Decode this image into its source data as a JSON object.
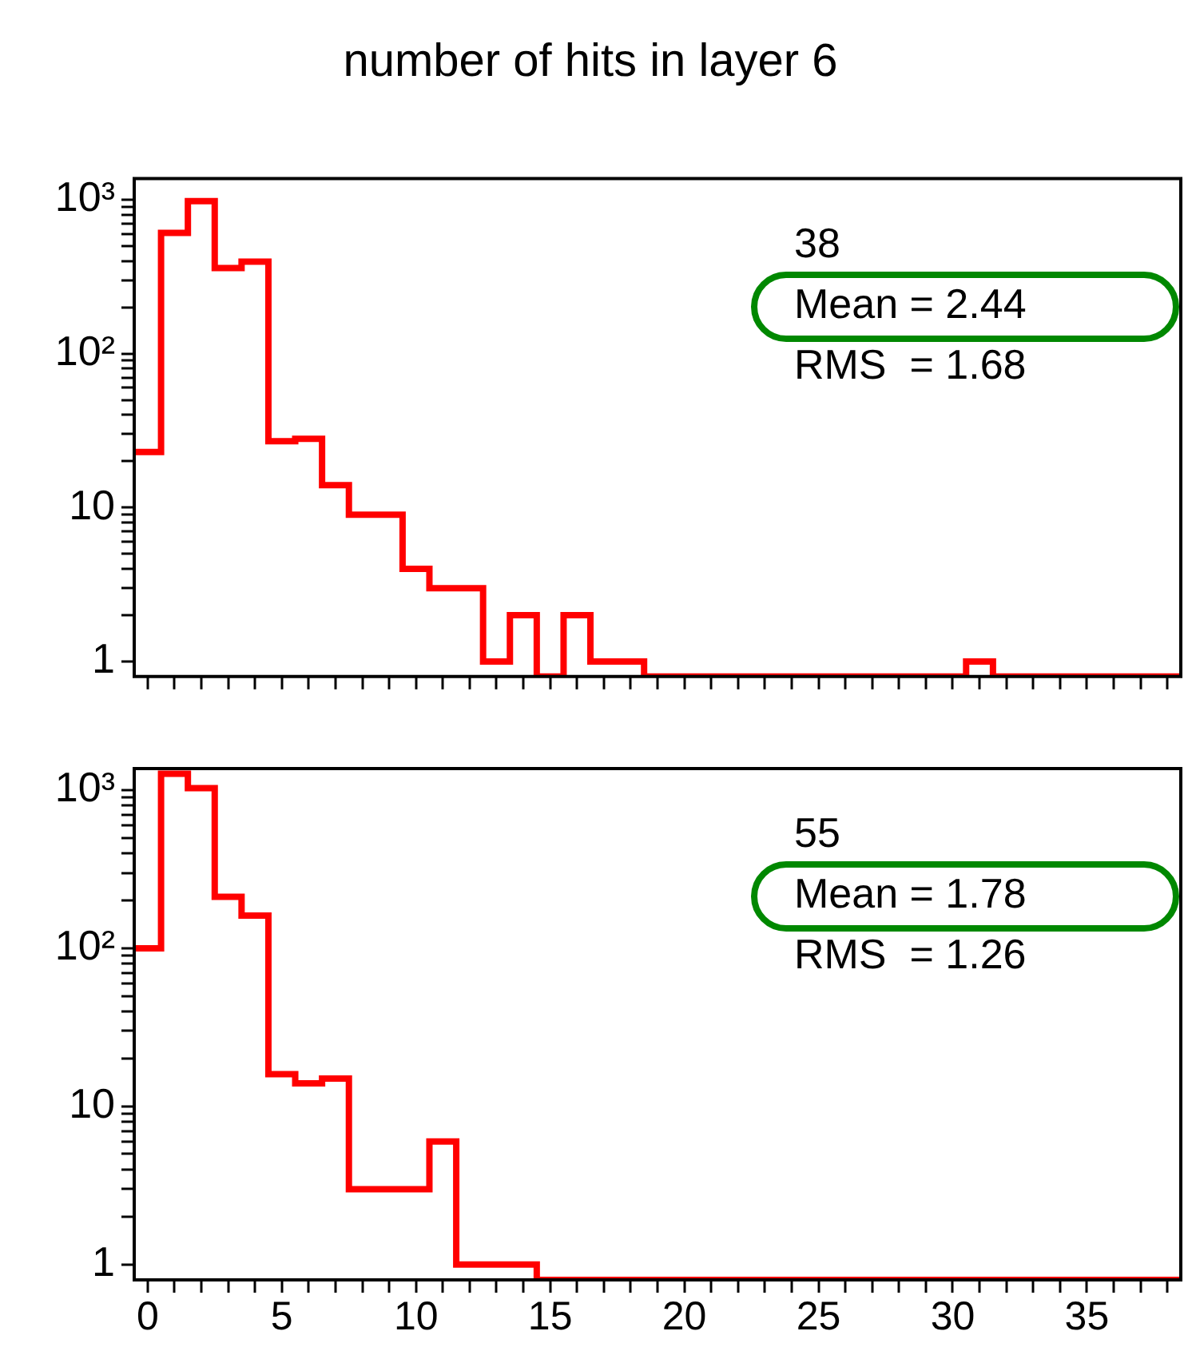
{
  "chart_data": [
    {
      "type": "histogram",
      "title": "number of hits in layer 6",
      "color": "#ff0000",
      "log": true,
      "tick_labels": "y",
      "bins": [
        -0.5,
        0.5,
        1.5,
        2.5,
        3.5,
        4.5,
        5.5,
        6.5,
        7.5,
        8.5,
        9.5,
        10.5,
        11.5,
        12.5,
        13.5,
        14.5,
        15.5,
        16.5,
        17.5,
        18.5,
        19.5,
        20.5,
        21.5,
        22.5,
        23.5,
        24.5,
        25.5,
        26.5,
        27.5,
        28.5,
        29.5,
        30.5,
        31.5,
        32.5,
        33.5,
        34.5,
        35.5,
        36.5,
        37.5,
        38.5
      ],
      "values": [
        23,
        608,
        980,
        360,
        396,
        27,
        28,
        14,
        9,
        9,
        4,
        3,
        3,
        1,
        2,
        null,
        2,
        1,
        1,
        null,
        null,
        null,
        null,
        null,
        null,
        null,
        null,
        null,
        null,
        null,
        null,
        1,
        null,
        null,
        null,
        null,
        null,
        null,
        null
      ],
      "xlim": [
        -0.5,
        38.5
      ],
      "xticks": [
        {
          "value": 0,
          "label": null
        },
        {
          "value": 1,
          "label": null
        },
        {
          "value": 2,
          "label": null
        },
        {
          "value": 3,
          "label": null
        },
        {
          "value": 4,
          "label": null
        },
        {
          "value": 5,
          "label": null
        },
        {
          "value": 6,
          "label": null
        },
        {
          "value": 7,
          "label": null
        },
        {
          "value": 8,
          "label": null
        },
        {
          "value": 9,
          "label": null
        },
        {
          "value": 10,
          "label": null
        },
        {
          "value": 11,
          "label": null
        },
        {
          "value": 12,
          "label": null
        },
        {
          "value": 13,
          "label": null
        },
        {
          "value": 14,
          "label": null
        },
        {
          "value": 15,
          "label": null
        },
        {
          "value": 16,
          "label": null
        },
        {
          "value": 17,
          "label": null
        },
        {
          "value": 18,
          "label": null
        },
        {
          "value": 19,
          "label": null
        },
        {
          "value": 20,
          "label": null
        },
        {
          "value": 21,
          "label": null
        },
        {
          "value": 22,
          "label": null
        },
        {
          "value": 23,
          "label": null
        },
        {
          "value": 24,
          "label": null
        },
        {
          "value": 25,
          "label": null
        },
        {
          "value": 26,
          "label": null
        },
        {
          "value": 27,
          "label": null
        },
        {
          "value": 28,
          "label": null
        },
        {
          "value": 29,
          "label": null
        },
        {
          "value": 30,
          "label": null
        },
        {
          "value": 31,
          "label": null
        },
        {
          "value": 32,
          "label": null
        },
        {
          "value": 33,
          "label": null
        },
        {
          "value": 34,
          "label": null
        },
        {
          "value": 35,
          "label": null
        },
        {
          "value": 36,
          "label": null
        },
        {
          "value": 37,
          "label": null
        },
        {
          "value": 38,
          "label": null
        }
      ],
      "ylim": [
        0.8,
        1370
      ],
      "yticks": [
        {
          "value": 1,
          "label": "1"
        },
        {
          "value": 2,
          "label": null
        },
        {
          "value": 3,
          "label": null
        },
        {
          "value": 4,
          "label": null
        },
        {
          "value": 5,
          "label": null
        },
        {
          "value": 6,
          "label": null
        },
        {
          "value": 7,
          "label": null
        },
        {
          "value": 8,
          "label": null
        },
        {
          "value": 9,
          "label": null
        },
        {
          "value": 10,
          "label": "10"
        },
        {
          "value": 20,
          "label": null
        },
        {
          "value": 30,
          "label": null
        },
        {
          "value": 40,
          "label": null
        },
        {
          "value": 50,
          "label": null
        },
        {
          "value": 60,
          "label": null
        },
        {
          "value": 70,
          "label": null
        },
        {
          "value": 80,
          "label": null
        },
        {
          "value": 90,
          "label": null
        },
        {
          "value": 100,
          "label": "10²"
        },
        {
          "value": 200,
          "label": null
        },
        {
          "value": 300,
          "label": null
        },
        {
          "value": 400,
          "label": null
        },
        {
          "value": 500,
          "label": null
        },
        {
          "value": 600,
          "label": null
        },
        {
          "value": 700,
          "label": null
        },
        {
          "value": 800,
          "label": null
        },
        {
          "value": 900,
          "label": null
        },
        {
          "value": 1000,
          "label": "10³"
        }
      ],
      "annotations": [
        "38",
        "Mean = 2.44",
        "RMS  = 1.68"
      ]
    },
    {
      "type": "histogram",
      "color": "#ff0000",
      "log": true,
      "bins": [
        -0.5,
        0.5,
        1.5,
        2.5,
        3.5,
        4.5,
        5.5,
        6.5,
        7.5,
        8.5,
        9.5,
        10.5,
        11.5,
        12.5,
        13.5,
        14.5,
        15.5,
        16.5,
        17.5,
        18.5,
        19.5,
        20.5,
        21.5,
        22.5,
        23.5,
        24.5,
        25.5,
        26.5,
        27.5,
        28.5,
        29.5,
        30.5,
        31.5,
        32.5,
        33.5,
        34.5,
        35.5,
        36.5,
        37.5,
        38.5
      ],
      "values": [
        100,
        1270,
        1030,
        212,
        161,
        16,
        14,
        15,
        3,
        3,
        3,
        6,
        1,
        1,
        1,
        null,
        null,
        null,
        null,
        null,
        null,
        null,
        null,
        null,
        null,
        null,
        null,
        null,
        null,
        null,
        null,
        null,
        null,
        null,
        null,
        null,
        null,
        null,
        null
      ],
      "xlim": [
        -0.5,
        38.5
      ],
      "xticks": [
        {
          "value": 0,
          "label": "0"
        },
        {
          "value": 1,
          "label": null
        },
        {
          "value": 2,
          "label": null
        },
        {
          "value": 3,
          "label": null
        },
        {
          "value": 4,
          "label": null
        },
        {
          "value": 5,
          "label": "5"
        },
        {
          "value": 6,
          "label": null
        },
        {
          "value": 7,
          "label": null
        },
        {
          "value": 8,
          "label": null
        },
        {
          "value": 9,
          "label": null
        },
        {
          "value": 10,
          "label": "10"
        },
        {
          "value": 11,
          "label": null
        },
        {
          "value": 12,
          "label": null
        },
        {
          "value": 13,
          "label": null
        },
        {
          "value": 14,
          "label": null
        },
        {
          "value": 15,
          "label": "15"
        },
        {
          "value": 16,
          "label": null
        },
        {
          "value": 17,
          "label": null
        },
        {
          "value": 18,
          "label": null
        },
        {
          "value": 19,
          "label": null
        },
        {
          "value": 20,
          "label": "20"
        },
        {
          "value": 21,
          "label": null
        },
        {
          "value": 22,
          "label": null
        },
        {
          "value": 23,
          "label": null
        },
        {
          "value": 24,
          "label": null
        },
        {
          "value": 25,
          "label": "25"
        },
        {
          "value": 26,
          "label": null
        },
        {
          "value": 27,
          "label": null
        },
        {
          "value": 28,
          "label": null
        },
        {
          "value": 29,
          "label": null
        },
        {
          "value": 30,
          "label": "30"
        },
        {
          "value": 31,
          "label": null
        },
        {
          "value": 32,
          "label": null
        },
        {
          "value": 33,
          "label": null
        },
        {
          "value": 34,
          "label": null
        },
        {
          "value": 35,
          "label": "35"
        },
        {
          "value": 36,
          "label": null
        },
        {
          "value": 37,
          "label": null
        },
        {
          "value": 38,
          "label": null
        }
      ],
      "ylim": [
        0.8,
        1370
      ],
      "yticks": [
        {
          "value": 1,
          "label": "1"
        },
        {
          "value": 2,
          "label": null
        },
        {
          "value": 3,
          "label": null
        },
        {
          "value": 4,
          "label": null
        },
        {
          "value": 5,
          "label": null
        },
        {
          "value": 6,
          "label": null
        },
        {
          "value": 7,
          "label": null
        },
        {
          "value": 8,
          "label": null
        },
        {
          "value": 9,
          "label": null
        },
        {
          "value": 10,
          "label": "10"
        },
        {
          "value": 20,
          "label": null
        },
        {
          "value": 30,
          "label": null
        },
        {
          "value": 40,
          "label": null
        },
        {
          "value": 50,
          "label": null
        },
        {
          "value": 60,
          "label": null
        },
        {
          "value": 70,
          "label": null
        },
        {
          "value": 80,
          "label": null
        },
        {
          "value": 90,
          "label": null
        },
        {
          "value": 100,
          "label": "10²"
        },
        {
          "value": 200,
          "label": null
        },
        {
          "value": 300,
          "label": null
        },
        {
          "value": 400,
          "label": null
        },
        {
          "value": 500,
          "label": null
        },
        {
          "value": 600,
          "label": null
        },
        {
          "value": 700,
          "label": null
        },
        {
          "value": 800,
          "label": null
        },
        {
          "value": 900,
          "label": null
        },
        {
          "value": 1000,
          "label": "10³"
        }
      ],
      "annotations": [
        "55",
        "Mean = 1.78",
        "RMS  = 1.26"
      ]
    }
  ]
}
